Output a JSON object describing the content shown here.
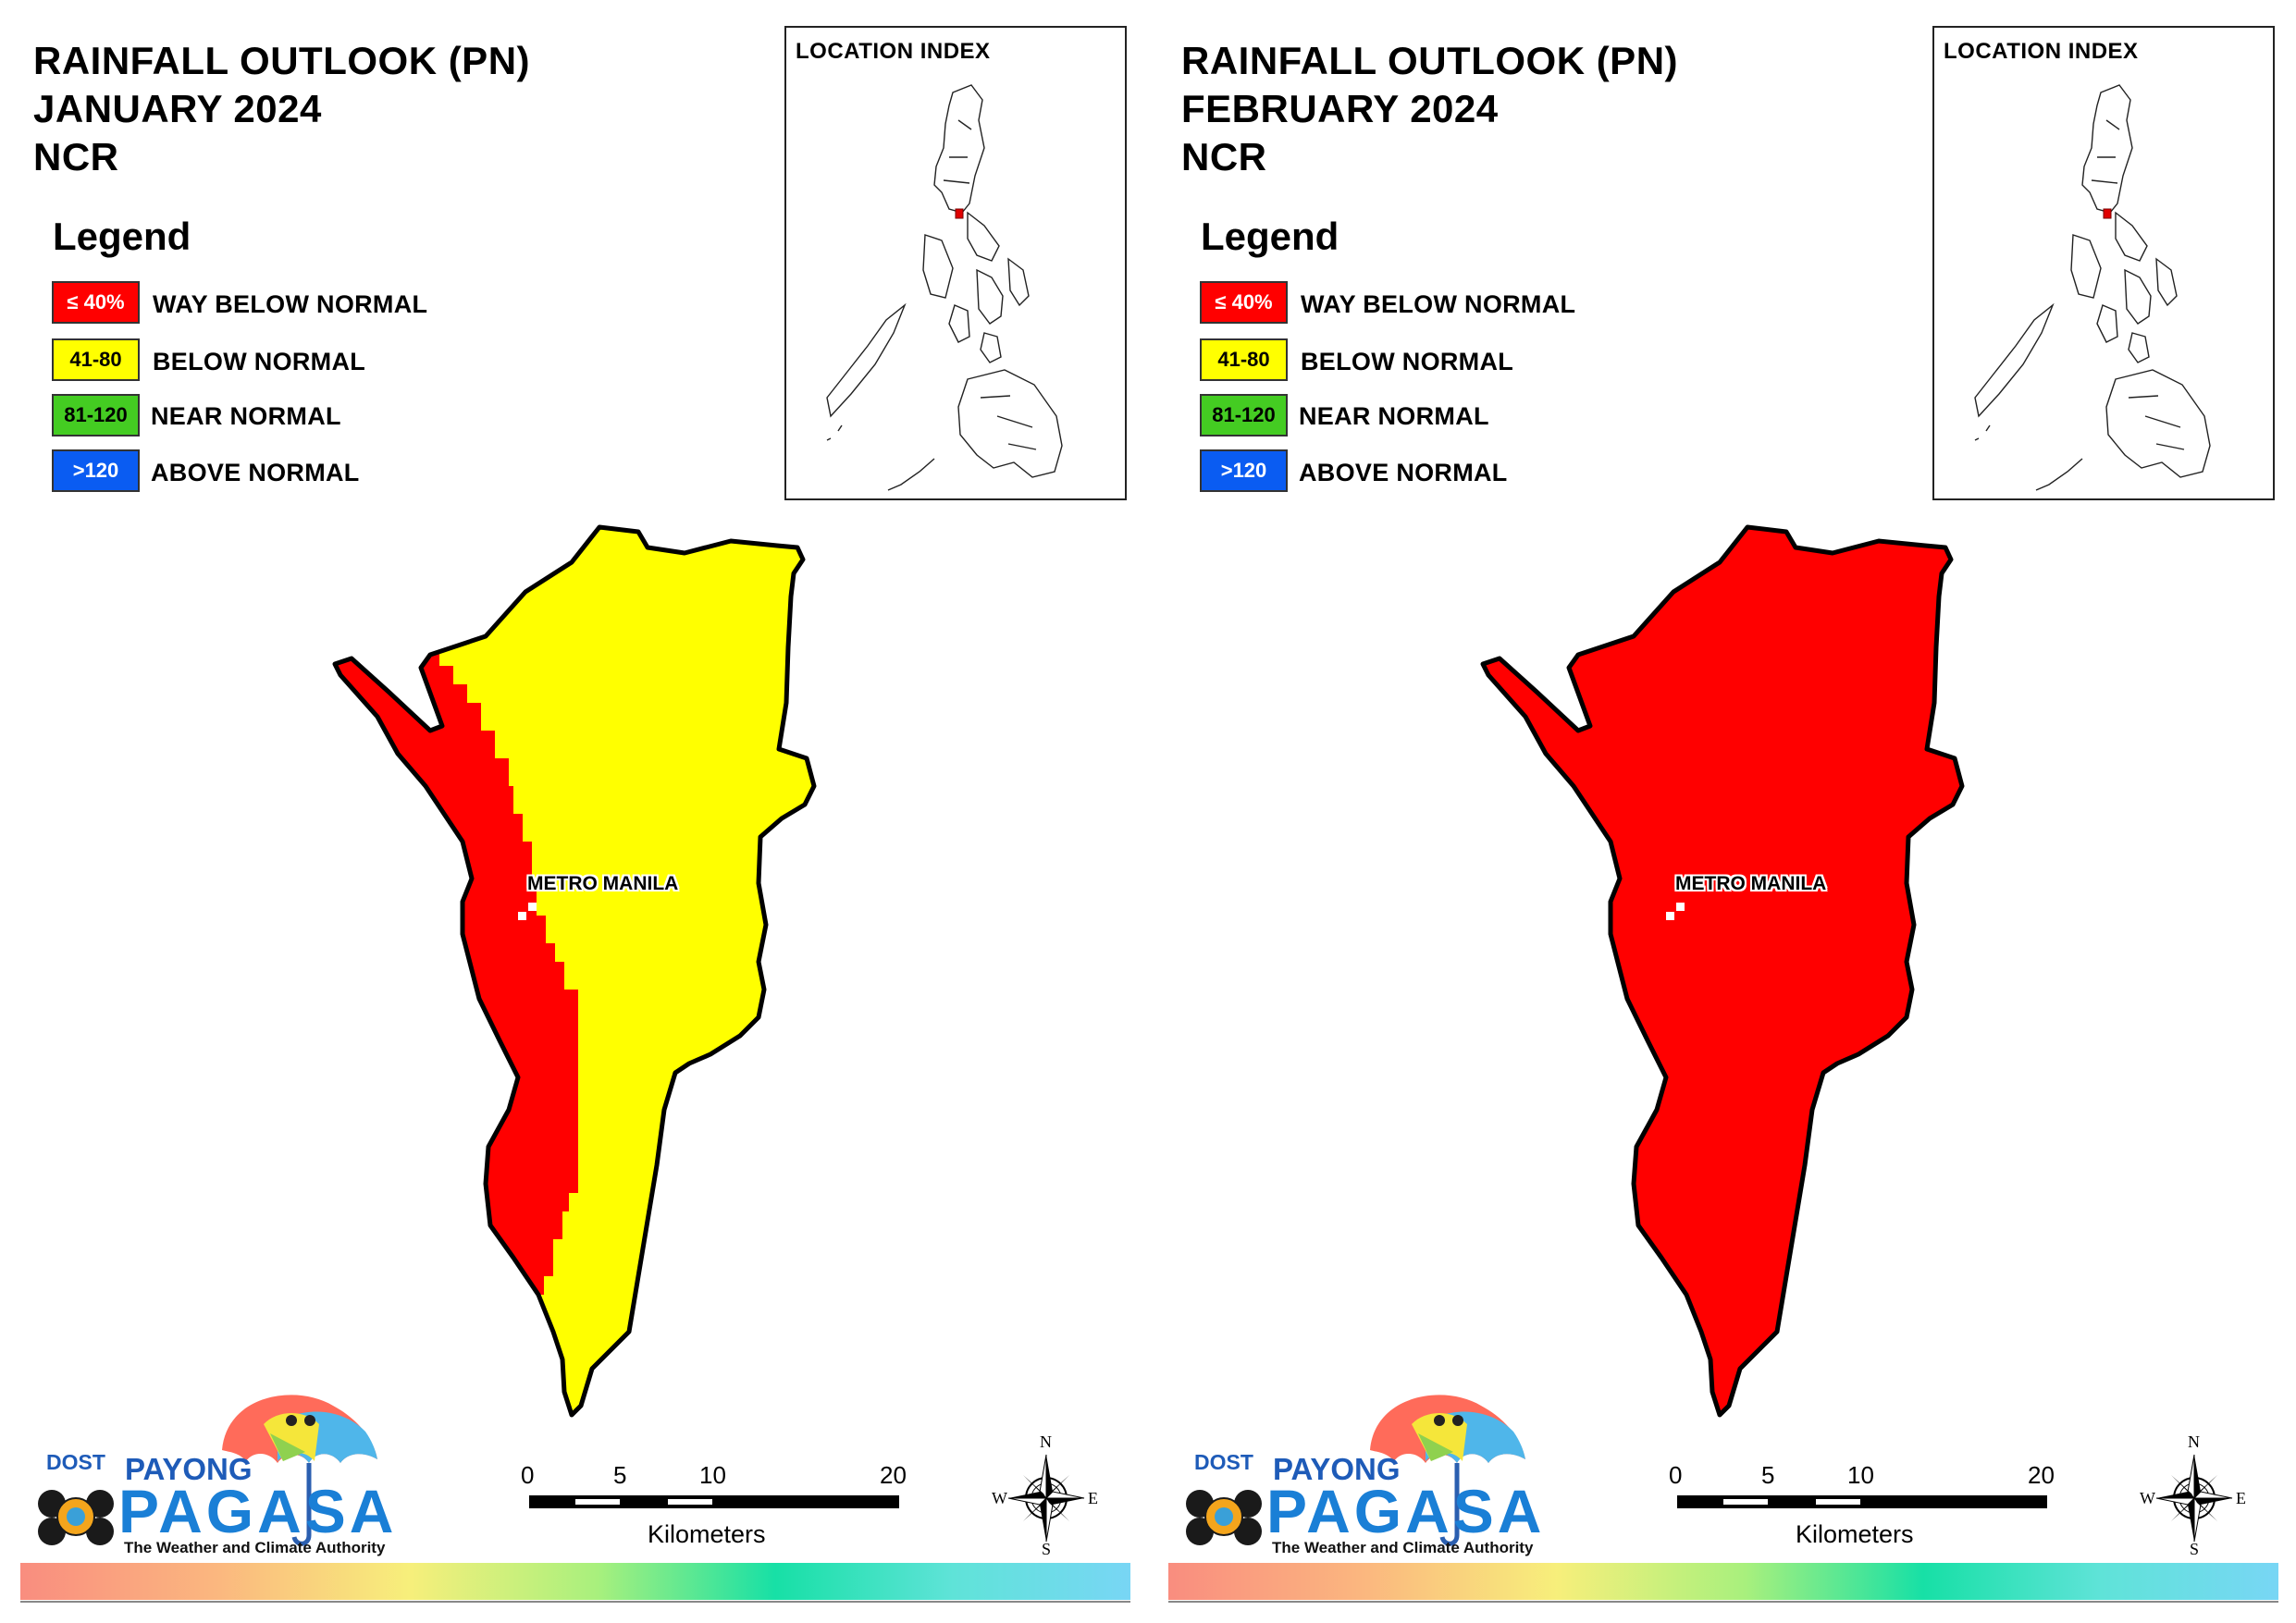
{
  "panels": [
    {
      "title_line1": "RAINFALL OUTLOOK (PN)",
      "title_line2": "JANUARY 2024",
      "title_line3": "NCR",
      "place_label": "METRO MANILA",
      "fill_pattern": "red-west-strip-yellow-rest"
    },
    {
      "title_line1": "RAINFALL OUTLOOK (PN)",
      "title_line2": "FEBRUARY 2024",
      "title_line3": "NCR",
      "place_label": "METRO MANILA",
      "fill_pattern": "all-red"
    }
  ],
  "legend": {
    "title": "Legend",
    "items": [
      {
        "code": "≤ 40%",
        "label": "WAY BELOW NORMAL",
        "color": "#ff0000",
        "text_color": "#ffffff"
      },
      {
        "code": "41-80",
        "label": "BELOW NORMAL",
        "color": "#ffff00",
        "text_color": "#000000"
      },
      {
        "code": "81-120",
        "label": "NEAR NORMAL",
        "color": "#44cc22",
        "text_color": "#000000"
      },
      {
        "code": ">120",
        "label": "ABOVE NORMAL",
        "color": "#0a5cf2",
        "text_color": "#ffffff"
      }
    ]
  },
  "inset": {
    "title": "LOCATION INDEX"
  },
  "logo": {
    "dost": "DOST",
    "payong": "PAYONG",
    "pagasa": "PAGASA",
    "tagline": "The Weather and Climate Authority"
  },
  "scale": {
    "ticks": [
      "0",
      "5",
      "10",
      "20"
    ],
    "units": "Kilometers"
  },
  "compass": {
    "n": "N",
    "s": "S",
    "e": "E",
    "w": "W"
  }
}
